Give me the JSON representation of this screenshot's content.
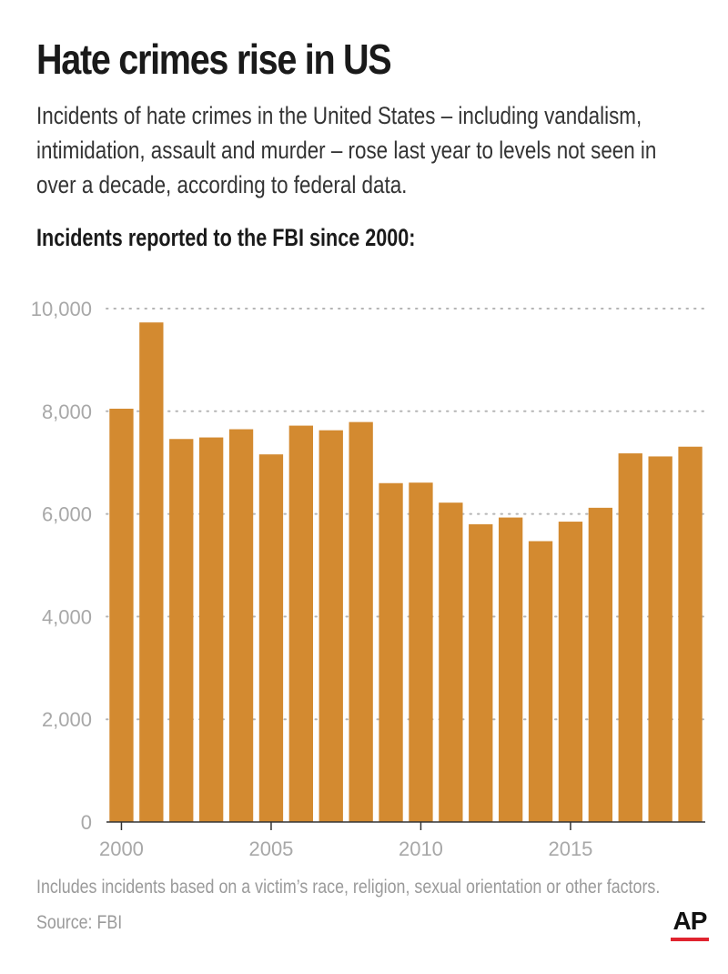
{
  "header": {
    "title": "Hate crimes rise in US",
    "subtitle": "Incidents of hate crimes in the United States – including vandalism, intimidation, assault and murder – rose last year to levels not seen in over a decade, according to federal data.",
    "chart_heading": "Incidents reported to the FBI since 2000:"
  },
  "footer": {
    "note": "Includes incidents based on a victim’s race, religion, sexual orientation or other factors.",
    "source": "Source: FBI",
    "logo_text": "AP",
    "logo_accent_color": "#e0242f"
  },
  "chart_data": {
    "type": "bar",
    "categories": [
      2000,
      2001,
      2002,
      2003,
      2004,
      2005,
      2006,
      2007,
      2008,
      2009,
      2010,
      2011,
      2012,
      2013,
      2014,
      2015,
      2016,
      2017,
      2018,
      2019
    ],
    "values": [
      8050,
      9730,
      7460,
      7490,
      7650,
      7160,
      7720,
      7630,
      7790,
      6600,
      6610,
      6220,
      5800,
      5930,
      5470,
      5850,
      6120,
      7180,
      7120,
      7310
    ],
    "x_tick_labels": [
      "2000",
      "2005",
      "2010",
      "2015"
    ],
    "x_tick_values": [
      2000,
      2005,
      2010,
      2015
    ],
    "y_tick_labels": [
      "0",
      "2,000",
      "4,000",
      "6,000",
      "8,000",
      "10,000"
    ],
    "y_tick_values": [
      0,
      2000,
      4000,
      6000,
      8000,
      10000
    ],
    "ylim": [
      0,
      10000
    ],
    "grid": "horizontal dotted",
    "bar_color": "#d38a30",
    "axis_color": "#333333",
    "grid_color": "#b5b5b5",
    "tick_label_color": "#a8a8a8"
  }
}
